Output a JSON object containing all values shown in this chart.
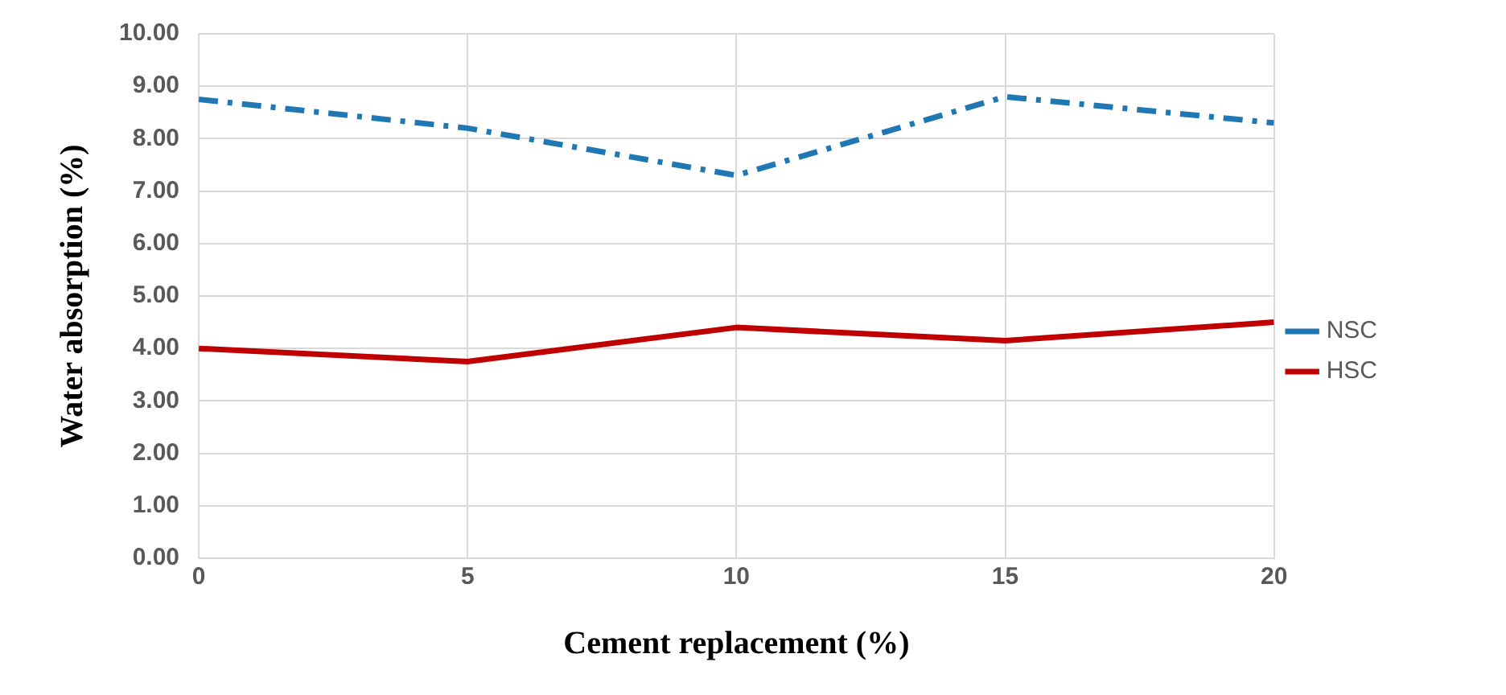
{
  "chart_data": {
    "type": "line",
    "xlabel": "Cement replacement (%)",
    "ylabel": "Water absorption (%)",
    "x": [
      0,
      5,
      10,
      15,
      20
    ],
    "series": [
      {
        "name": "NSC",
        "color": "#1f77b4",
        "values": [
          8.75,
          8.2,
          7.3,
          8.8,
          8.3
        ],
        "line_style": "dashed"
      },
      {
        "name": "HSC",
        "color": "#c00000",
        "values": [
          4.0,
          3.75,
          4.4,
          4.15,
          4.5
        ],
        "line_style": "solid"
      }
    ],
    "xlim": [
      0,
      20
    ],
    "xticks": [
      0,
      5,
      10,
      15,
      20
    ],
    "ylim": [
      0,
      10
    ],
    "yticks": [
      {
        "value": 0,
        "label": "0.00"
      },
      {
        "value": 1,
        "label": "1.00"
      },
      {
        "value": 2,
        "label": "2.00"
      },
      {
        "value": 3,
        "label": "3.00"
      },
      {
        "value": 4,
        "label": "4.00"
      },
      {
        "value": 5,
        "label": "5.00"
      },
      {
        "value": 6,
        "label": "6.00"
      },
      {
        "value": 7,
        "label": "7.00"
      },
      {
        "value": 8,
        "label": "8.00"
      },
      {
        "value": 9,
        "label": "9.00"
      },
      {
        "value": 10,
        "label": "10.00"
      }
    ],
    "grid": true,
    "legend": "right",
    "marker": "none"
  }
}
